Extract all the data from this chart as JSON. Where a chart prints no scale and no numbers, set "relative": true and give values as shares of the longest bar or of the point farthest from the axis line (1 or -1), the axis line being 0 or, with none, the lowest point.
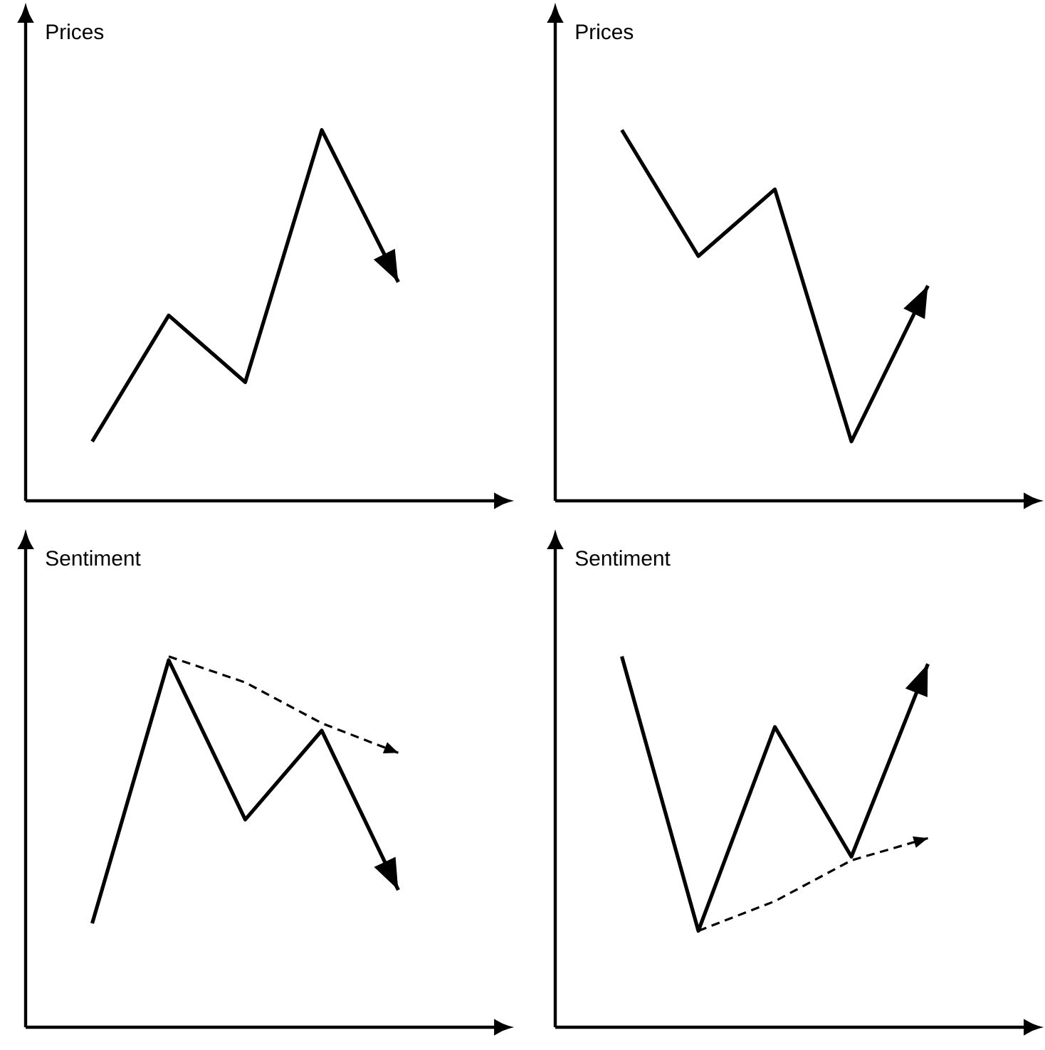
{
  "chart_data": [
    {
      "type": "line",
      "ylabel": "Prices",
      "relative": true,
      "categories": [
        null,
        null,
        null,
        null,
        null
      ],
      "marker": "none",
      "series": [
        {
          "color": "#000000",
          "values": [
            0.16,
            0.5,
            0.32,
            1,
            0.59
          ]
        }
      ]
    },
    {
      "type": "line",
      "ylabel": "Prices",
      "relative": true,
      "categories": [
        null,
        null,
        null,
        null,
        null
      ],
      "marker": "none",
      "series": [
        {
          "color": "#000000",
          "values": [
            1,
            0.66,
            0.84,
            0.16,
            0.58
          ]
        }
      ]
    },
    {
      "type": "line",
      "ylabel": "Sentiment",
      "relative": true,
      "categories": [
        null,
        null,
        null,
        null,
        null
      ],
      "marker": "none",
      "series": [
        {
          "color": "#000000",
          "values": [
            0.28,
            0.99,
            0.56,
            0.8,
            0.37
          ]
        },
        {
          "color": "#000000",
          "line_style": "dashed",
          "values": [
            null,
            1,
            0.93,
            0.82,
            0.74
          ]
        }
      ]
    },
    {
      "type": "line",
      "ylabel": "Sentiment",
      "relative": true,
      "categories": [
        null,
        null,
        null,
        null,
        null
      ],
      "marker": "none",
      "series": [
        {
          "color": "#000000",
          "values": [
            1,
            0.26,
            0.81,
            0.46,
            0.98
          ]
        },
        {
          "color": "#000000",
          "line_style": "dashed",
          "values": [
            null,
            0.26,
            0.34,
            0.45,
            0.51
          ]
        }
      ]
    }
  ]
}
